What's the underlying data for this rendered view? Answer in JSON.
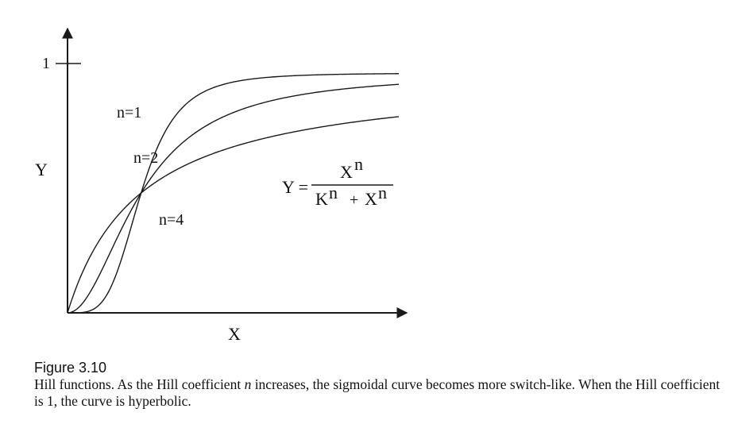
{
  "chart_data": {
    "type": "line",
    "xlabel": "X",
    "ylabel": "Y",
    "y_ticks": [
      "1"
    ],
    "ylim": [
      0,
      1
    ],
    "xlim": [
      0,
      4.5
    ],
    "K": 1,
    "grid": false,
    "equation": {
      "lhs": "Y =",
      "numerator": "X",
      "numerator_exp": "n",
      "denominator_a": "K",
      "denominator_a_exp": "n",
      "denominator_plus": "+",
      "denominator_b": "X",
      "denominator_b_exp": "n"
    },
    "series": [
      {
        "name": "n=1",
        "n": 1
      },
      {
        "name": "n=2",
        "n": 2
      },
      {
        "name": "n=4",
        "n": 4
      }
    ]
  },
  "caption": {
    "title": "Figure 3.10",
    "text_before": "Hill functions. As the Hill coefficient ",
    "italic": "n",
    "text_after": " increases, the sigmoidal curve becomes more switch-like. When the Hill coefficient is 1, the curve is hyperbolic."
  }
}
